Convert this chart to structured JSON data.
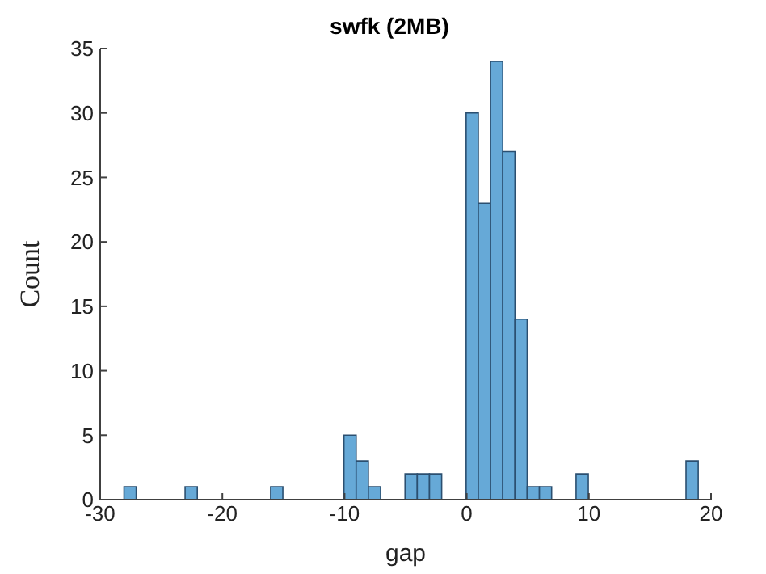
{
  "chart_data": {
    "type": "histogram",
    "title": "swfk (2MB)",
    "xlabel": "gap",
    "ylabel": "Count",
    "bins": [
      -28,
      -27,
      -26,
      -25,
      -24,
      -23,
      -22,
      -21,
      -20,
      -19,
      -18,
      -17,
      -16,
      -15,
      -14,
      -13,
      -12,
      -11,
      -10,
      -9,
      -8,
      -7,
      -6,
      -5,
      -4,
      -3,
      -2,
      -1,
      0,
      1,
      2,
      3,
      4,
      5,
      6,
      7,
      8,
      9,
      10,
      11,
      12,
      13,
      14,
      15,
      16,
      17,
      18,
      19
    ],
    "values": [
      1,
      0,
      0,
      0,
      0,
      1,
      0,
      0,
      0,
      0,
      0,
      0,
      1,
      0,
      0,
      0,
      0,
      0,
      5,
      3,
      1,
      0,
      0,
      2,
      2,
      2,
      0,
      0,
      30,
      23,
      34,
      27,
      14,
      1,
      1,
      0,
      0,
      2,
      0,
      0,
      0,
      0,
      0,
      0,
      0,
      0,
      3
    ],
    "color": "#66a9d7",
    "xlim": [
      -30,
      20
    ],
    "xticks": [
      -30,
      -20,
      -10,
      0,
      10,
      20
    ],
    "ylim": [
      0,
      35
    ],
    "yticks": [
      0,
      5,
      10,
      15,
      20,
      25,
      30,
      35
    ]
  }
}
